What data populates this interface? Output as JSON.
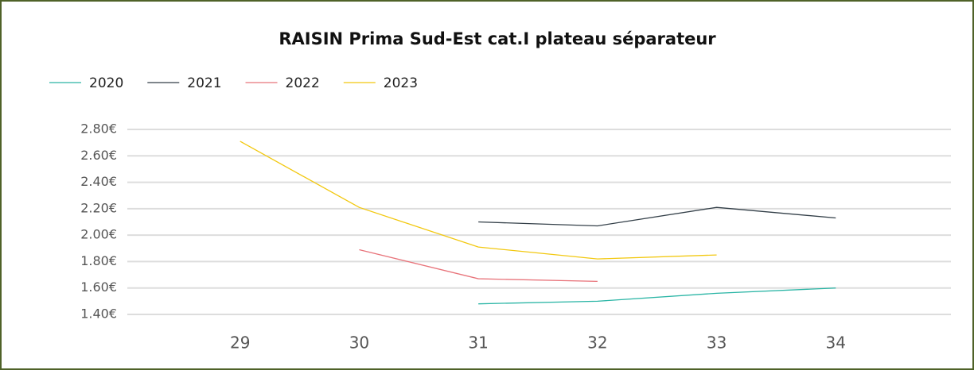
{
  "chart_data": {
    "type": "line",
    "title": "RAISIN Prima Sud-Est cat.I plateau séparateur",
    "x": [
      29,
      30,
      31,
      32,
      33,
      34
    ],
    "xlim": [
      28,
      35
    ],
    "xticks": [
      29,
      30,
      31,
      32,
      33,
      34
    ],
    "ylim": [
      1.4,
      2.8
    ],
    "yticks": [
      {
        "value": 1.4,
        "label": "1.40€"
      },
      {
        "value": 1.6,
        "label": "1.60€"
      },
      {
        "value": 1.8,
        "label": "1.80€"
      },
      {
        "value": 2.0,
        "label": "2.00€"
      },
      {
        "value": 2.2,
        "label": "2.20€"
      },
      {
        "value": 2.4,
        "label": "2.40€"
      },
      {
        "value": 2.6,
        "label": "2.60€"
      },
      {
        "value": 2.8,
        "label": "2.80€"
      }
    ],
    "grid": true,
    "legend": "top-left",
    "series": [
      {
        "name": "2020",
        "color": "#2ab5a5",
        "values": [
          null,
          null,
          1.48,
          1.5,
          1.56,
          1.6
        ]
      },
      {
        "name": "2021",
        "color": "#333f48",
        "values": [
          null,
          null,
          2.1,
          2.07,
          2.21,
          2.13
        ]
      },
      {
        "name": "2022",
        "color": "#e8737a",
        "values": [
          null,
          1.89,
          1.67,
          1.65,
          null,
          null
        ]
      },
      {
        "name": "2023",
        "color": "#f2c80f",
        "values": [
          2.71,
          2.21,
          1.91,
          1.82,
          1.85,
          null
        ]
      }
    ]
  }
}
